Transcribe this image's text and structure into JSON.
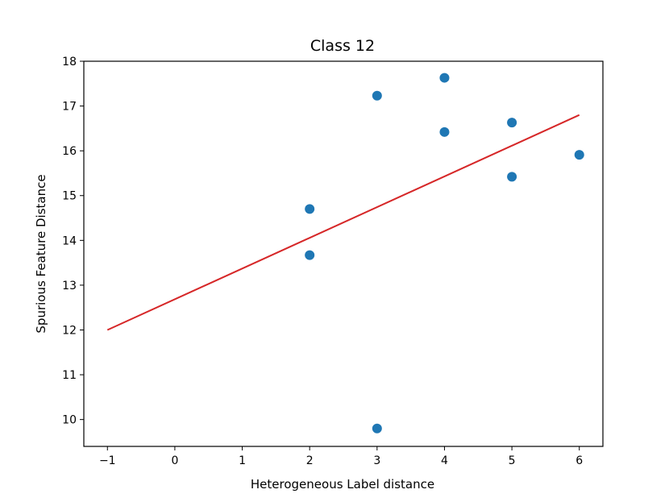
{
  "chart_data": {
    "type": "scatter",
    "title": "Class 12",
    "xlabel": "Heterogeneous Label distance",
    "ylabel": "Spurious Feature Distance",
    "xlim": [
      -1.35,
      6.35
    ],
    "ylim": [
      9.4,
      18.0
    ],
    "xticks": [
      -1,
      0,
      1,
      2,
      3,
      4,
      5,
      6
    ],
    "xtick_labels": [
      "−1",
      "0",
      "1",
      "2",
      "3",
      "4",
      "5",
      "6"
    ],
    "yticks": [
      10,
      11,
      12,
      13,
      14,
      15,
      16,
      17,
      18
    ],
    "ytick_labels": [
      "10",
      "11",
      "12",
      "13",
      "14",
      "15",
      "16",
      "17",
      "18"
    ],
    "grid": false,
    "points": [
      {
        "x": 2,
        "y": 14.7
      },
      {
        "x": 2,
        "y": 13.67
      },
      {
        "x": 3,
        "y": 17.23
      },
      {
        "x": 3,
        "y": 9.8
      },
      {
        "x": 4,
        "y": 17.63
      },
      {
        "x": 4,
        "y": 16.42
      },
      {
        "x": 5,
        "y": 16.63
      },
      {
        "x": 5,
        "y": 15.42
      },
      {
        "x": 6,
        "y": 15.91
      }
    ],
    "fit_line": {
      "x": [
        -1,
        6
      ],
      "y": [
        12.0,
        16.8
      ]
    },
    "colors": {
      "points": "#1f77b4",
      "fit_line": "#d62728"
    }
  }
}
